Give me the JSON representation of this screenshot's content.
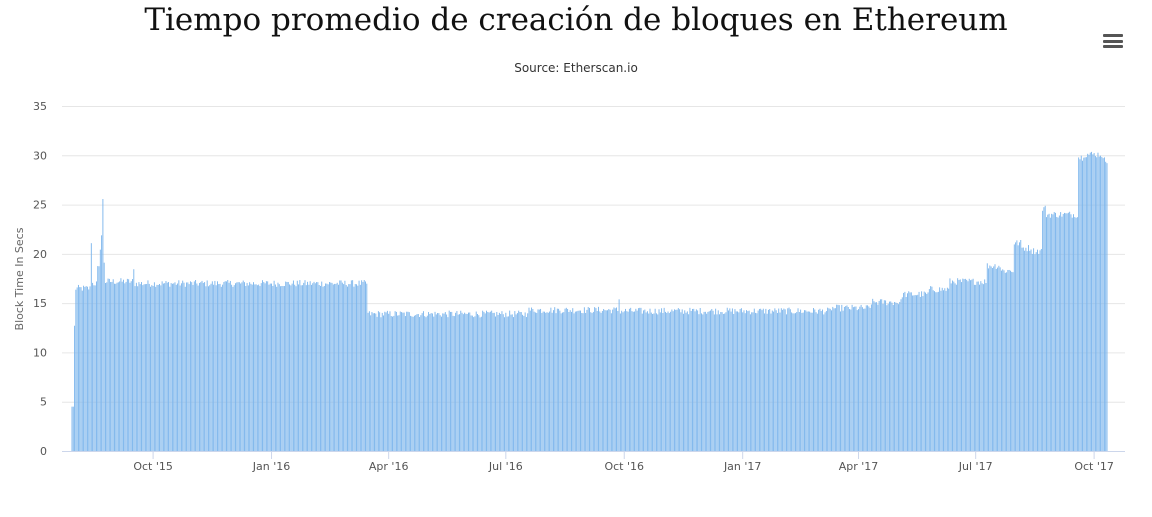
{
  "chart_data": {
    "type": "bar",
    "title": "Tiempo promedio de creación de bloques en Ethereum",
    "subtitle": "Source: Etherscan.io",
    "ylabel": "Block Time In Secs",
    "xlabel": "",
    "ylim": [
      0,
      35
    ],
    "yticks": [
      0,
      5,
      10,
      15,
      20,
      25,
      30,
      35
    ],
    "xlim": [
      "2015-07-30",
      "2017-10-18"
    ],
    "xticks": [
      {
        "label": "Oct '15",
        "date": "2015-10-01"
      },
      {
        "label": "Jan '16",
        "date": "2016-01-01"
      },
      {
        "label": "Apr '16",
        "date": "2016-04-01"
      },
      {
        "label": "Jul '16",
        "date": "2016-07-01"
      },
      {
        "label": "Oct '16",
        "date": "2016-10-01"
      },
      {
        "label": "Jan '17",
        "date": "2017-01-01"
      },
      {
        "label": "Apr '17",
        "date": "2017-04-01"
      },
      {
        "label": "Jul '17",
        "date": "2017-07-01"
      },
      {
        "label": "Oct '17",
        "date": "2017-10-01"
      }
    ],
    "grid": true,
    "bar_color": "#7cb5ec",
    "series_daily": [
      {
        "from": "2015-07-30",
        "to": "2015-07-31",
        "value": 4.5
      },
      {
        "from": "2015-08-01",
        "to": "2015-08-01",
        "value": 12.6
      },
      {
        "from": "2015-08-02",
        "to": "2015-08-13",
        "value": 16.5
      },
      {
        "from": "2015-08-14",
        "to": "2015-08-14",
        "value": 21.3
      },
      {
        "from": "2015-08-15",
        "to": "2015-08-18",
        "value": 17.0
      },
      {
        "from": "2015-08-19",
        "to": "2015-08-20",
        "value": 18.5
      },
      {
        "from": "2015-08-21",
        "to": "2015-08-21",
        "value": 20.7
      },
      {
        "from": "2015-08-22",
        "to": "2015-08-22",
        "value": 21.9
      },
      {
        "from": "2015-08-23",
        "to": "2015-08-23",
        "value": 25.4
      },
      {
        "from": "2015-08-24",
        "to": "2015-08-24",
        "value": 19.2
      },
      {
        "from": "2015-08-25",
        "to": "2015-09-15",
        "value": 17.2
      },
      {
        "from": "2015-09-16",
        "to": "2015-09-16",
        "value": 18.3
      },
      {
        "from": "2015-09-17",
        "to": "2016-03-15",
        "value": 17.0
      },
      {
        "from": "2016-03-16",
        "to": "2016-07-17",
        "value": 13.9
      },
      {
        "from": "2016-07-18",
        "to": "2016-09-26",
        "value": 14.3
      },
      {
        "from": "2016-09-27",
        "to": "2016-09-27",
        "value": 15.4
      },
      {
        "from": "2016-09-28",
        "to": "2017-03-10",
        "value": 14.2
      },
      {
        "from": "2017-03-11",
        "to": "2017-04-10",
        "value": 14.5
      },
      {
        "from": "2017-04-11",
        "to": "2017-05-04",
        "value": 15.1
      },
      {
        "from": "2017-05-05",
        "to": "2017-05-25",
        "value": 15.9
      },
      {
        "from": "2017-05-26",
        "to": "2017-06-10",
        "value": 16.4
      },
      {
        "from": "2017-06-11",
        "to": "2017-07-09",
        "value": 17.2
      },
      {
        "from": "2017-07-10",
        "to": "2017-07-20",
        "value": 18.8
      },
      {
        "from": "2017-07-21",
        "to": "2017-07-30",
        "value": 18.3
      },
      {
        "from": "2017-07-31",
        "to": "2017-08-05",
        "value": 21.1
      },
      {
        "from": "2017-08-06",
        "to": "2017-08-13",
        "value": 20.6
      },
      {
        "from": "2017-08-14",
        "to": "2017-08-21",
        "value": 20.3
      },
      {
        "from": "2017-08-22",
        "to": "2017-08-24",
        "value": 24.6
      },
      {
        "from": "2017-08-25",
        "to": "2017-09-18",
        "value": 24.0
      },
      {
        "from": "2017-09-19",
        "to": "2017-09-22",
        "value": 29.8
      },
      {
        "from": "2017-09-23",
        "to": "2017-10-07",
        "value": 30.1
      },
      {
        "from": "2017-10-08",
        "to": "2017-10-11",
        "value": 29.5
      }
    ]
  },
  "toolbar": {
    "menu_icon": "hamburger-menu-icon"
  }
}
